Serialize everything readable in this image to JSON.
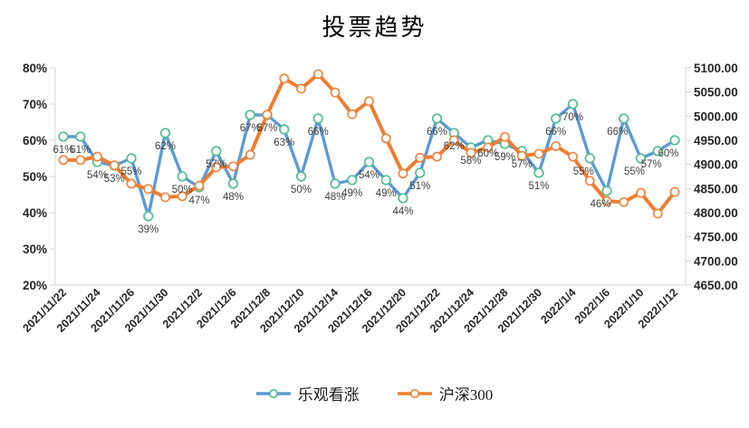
{
  "title": "投票趋势",
  "chart_data": {
    "type": "line",
    "title": "投票趋势",
    "grid": false,
    "legend_position": "bottom",
    "x": [
      "2021/11/22",
      "2021/11/23",
      "2021/11/24",
      "2021/11/25",
      "2021/11/26",
      "2021/11/29",
      "2021/11/30",
      "2021/12/1",
      "2021/12/2",
      "2021/12/3",
      "2021/12/6",
      "2021/12/7",
      "2021/12/8",
      "2021/12/9",
      "2021/12/10",
      "2021/12/13",
      "2021/12/14",
      "2021/12/15",
      "2021/12/16",
      "2021/12/17",
      "2021/12/20",
      "2021/12/21",
      "2021/12/22",
      "2021/12/23",
      "2021/12/24",
      "2021/12/27",
      "2021/12/28",
      "2021/12/29",
      "2021/12/30",
      "2021/12/31",
      "2022/1/4",
      "2022/1/5",
      "2022/1/6",
      "2022/1/7",
      "2022/1/10",
      "2022/1/11",
      "2022/1/12"
    ],
    "x_label_every": 2,
    "left_axis": {
      "min": 20,
      "max": 80,
      "step": 10,
      "ticks": [
        "20%",
        "30%",
        "40%",
        "50%",
        "60%",
        "70%",
        "80%"
      ]
    },
    "right_axis": {
      "min": 4650,
      "max": 5100,
      "step": 50,
      "ticks": [
        "4650.00",
        "4700.00",
        "4750.00",
        "4800.00",
        "4850.00",
        "4900.00",
        "4950.00",
        "5000.00",
        "5050.00",
        "5100.00"
      ]
    },
    "series": [
      {
        "id": "bullish",
        "name": "乐观看涨",
        "axis": "left",
        "color": "#5B9BD5",
        "marker_outline": "#52BD92",
        "width": 3.4,
        "marker_radius": 4.8,
        "values": [
          61,
          61,
          54,
          53,
          55,
          39,
          62,
          50,
          47,
          57,
          48,
          67,
          67,
          63,
          50,
          66,
          48,
          49,
          54,
          49,
          44,
          51,
          66,
          62,
          58,
          60,
          59,
          57,
          51,
          66,
          70,
          55,
          46,
          66,
          55,
          57,
          60
        ],
        "data_labels": [
          "61%",
          "61%",
          "54%",
          "53%",
          "55%",
          "39%",
          "62%",
          "50%",
          "47%",
          "57%",
          "48%",
          "67%",
          "67%",
          "63%",
          "50%",
          "66%",
          "48%",
          "49%",
          "54%",
          "49%",
          "44%",
          "51%",
          "66%",
          "62%",
          "58%",
          "60%",
          "59%",
          "57%",
          "51%",
          "66%",
          "70%",
          "55%",
          "46%",
          "66%",
          "55%",
          "57%",
          "60%"
        ]
      },
      {
        "id": "hs300",
        "name": "沪深300",
        "axis": "right",
        "color": "#ED7D31",
        "marker_outline": "#EE8644",
        "width": 4,
        "marker_radius": 4.6,
        "values": [
          4909,
          4909,
          4916,
          4898,
          4860,
          4849,
          4832,
          4834,
          4856,
          4894,
          4896,
          4920,
          5003,
          5078,
          5057,
          5087,
          5049,
          5004,
          5031,
          4954,
          4881,
          4914,
          4916,
          4950,
          4924,
          4935,
          4957,
          4918,
          4922,
          4938,
          4916,
          4866,
          4824,
          4822,
          4841,
          4798,
          4843
        ],
        "data_labels": null
      }
    ],
    "style": {
      "axis_line": "#D3D3D3",
      "tick_text": "#262626",
      "data_label": "#3F3F3F"
    }
  }
}
